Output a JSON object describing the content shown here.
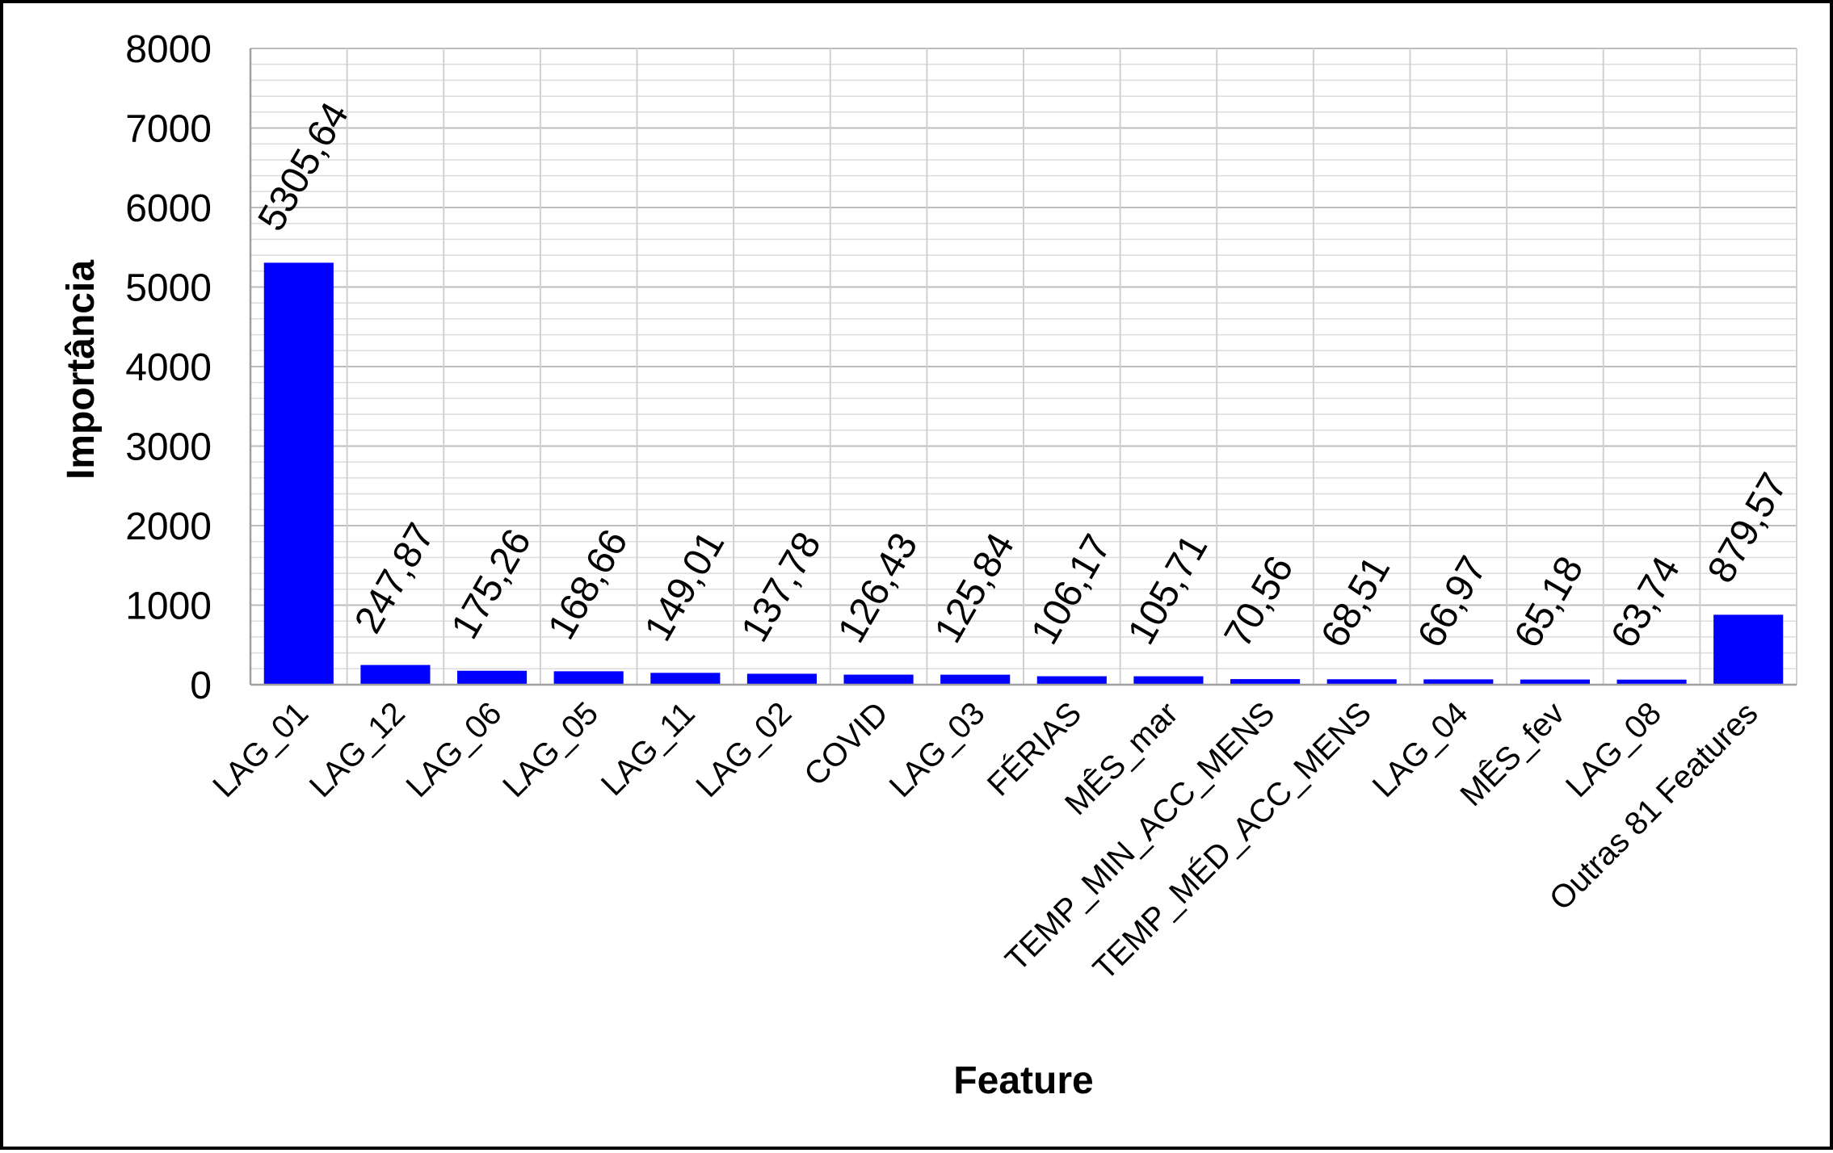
{
  "chart_data": {
    "type": "bar",
    "xlabel": "Feature",
    "ylabel": "Importância",
    "ylim": [
      0,
      8000
    ],
    "yticks": [
      "0",
      "1000",
      "2000",
      "3000",
      "4000",
      "5000",
      "6000",
      "7000",
      "8000"
    ],
    "grid": true,
    "bar_color": "#0000ff",
    "categories": [
      "LAG_01",
      "LAG_12",
      "LAG_06",
      "LAG_05",
      "LAG_11",
      "LAG_02",
      "COVID",
      "LAG_03",
      "FÉRIAS",
      "MÊS_mar",
      "TEMP_MIN_ACC_MENS",
      "TEMP_MÉD_ACC_MENS",
      "LAG_04",
      "MÊS_fev",
      "LAG_08",
      "Outras 81 Features"
    ],
    "values": [
      5305.64,
      247.87,
      175.26,
      168.66,
      149.01,
      137.78,
      126.43,
      125.84,
      106.17,
      105.71,
      70.56,
      68.51,
      66.97,
      65.18,
      63.74,
      879.57
    ],
    "data_labels": [
      "5305,64",
      "247,87",
      "175,26",
      "168,66",
      "149,01",
      "137,78",
      "126,43",
      "125,84",
      "106,17",
      "105,71",
      "70,56",
      "68,51",
      "66,97",
      "65,18",
      "63,74",
      "879,57"
    ]
  }
}
